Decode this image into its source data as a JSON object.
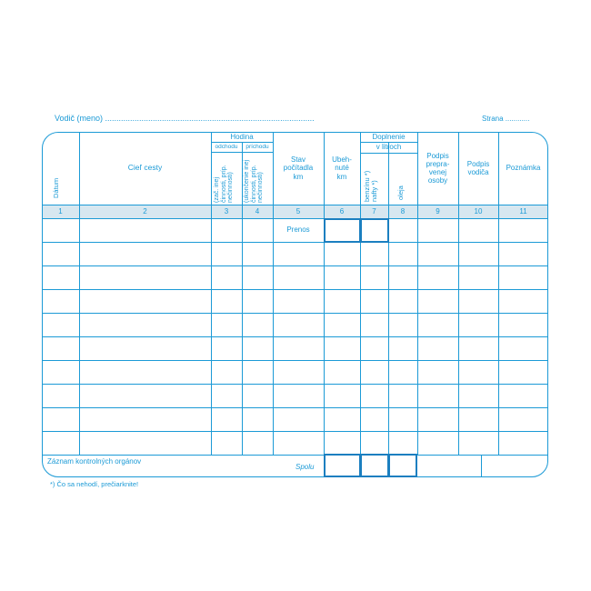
{
  "header": {
    "driver_label": "Vodič (meno) ............................................................................................",
    "page_label": "Strana ............"
  },
  "columns": {
    "date": "Dátum",
    "destination": "Cieľ cesty",
    "hour": "Hodina",
    "departure": "odchodu",
    "arrival": "príchodu",
    "departure_note": "(zač. inej\nčinnosti, príp.\nnečinnosti)",
    "arrival_note": "(ukončenie inej\nčinnosti, príp.\nnečinnosti)",
    "odometer": "Stav\npočítadla\nkm",
    "distance": "Ubeh-\nnuté\nkm",
    "refuel": "Doplnenie",
    "in_liters": "v litroch",
    "fuel": "benzínu *)\nnafty *)",
    "oil": "oleja",
    "passenger_sign": "Podpis\nprepra-\nvenej\nosoby",
    "driver_sign": "Podpis\nvodiča",
    "note": "Poznámka"
  },
  "numbers": [
    "1",
    "2",
    "3",
    "4",
    "5",
    "6",
    "7",
    "8",
    "9",
    "10",
    "11"
  ],
  "carry_over": "Prenos",
  "footer": {
    "control": "Záznam kontrolných orgánov",
    "total": "Spolu",
    "footnote": "*) Čo sa nehodí, prečiarknite!"
  },
  "colors": {
    "ink": "#1b9ad6",
    "number_row": "#d7e7f0"
  }
}
